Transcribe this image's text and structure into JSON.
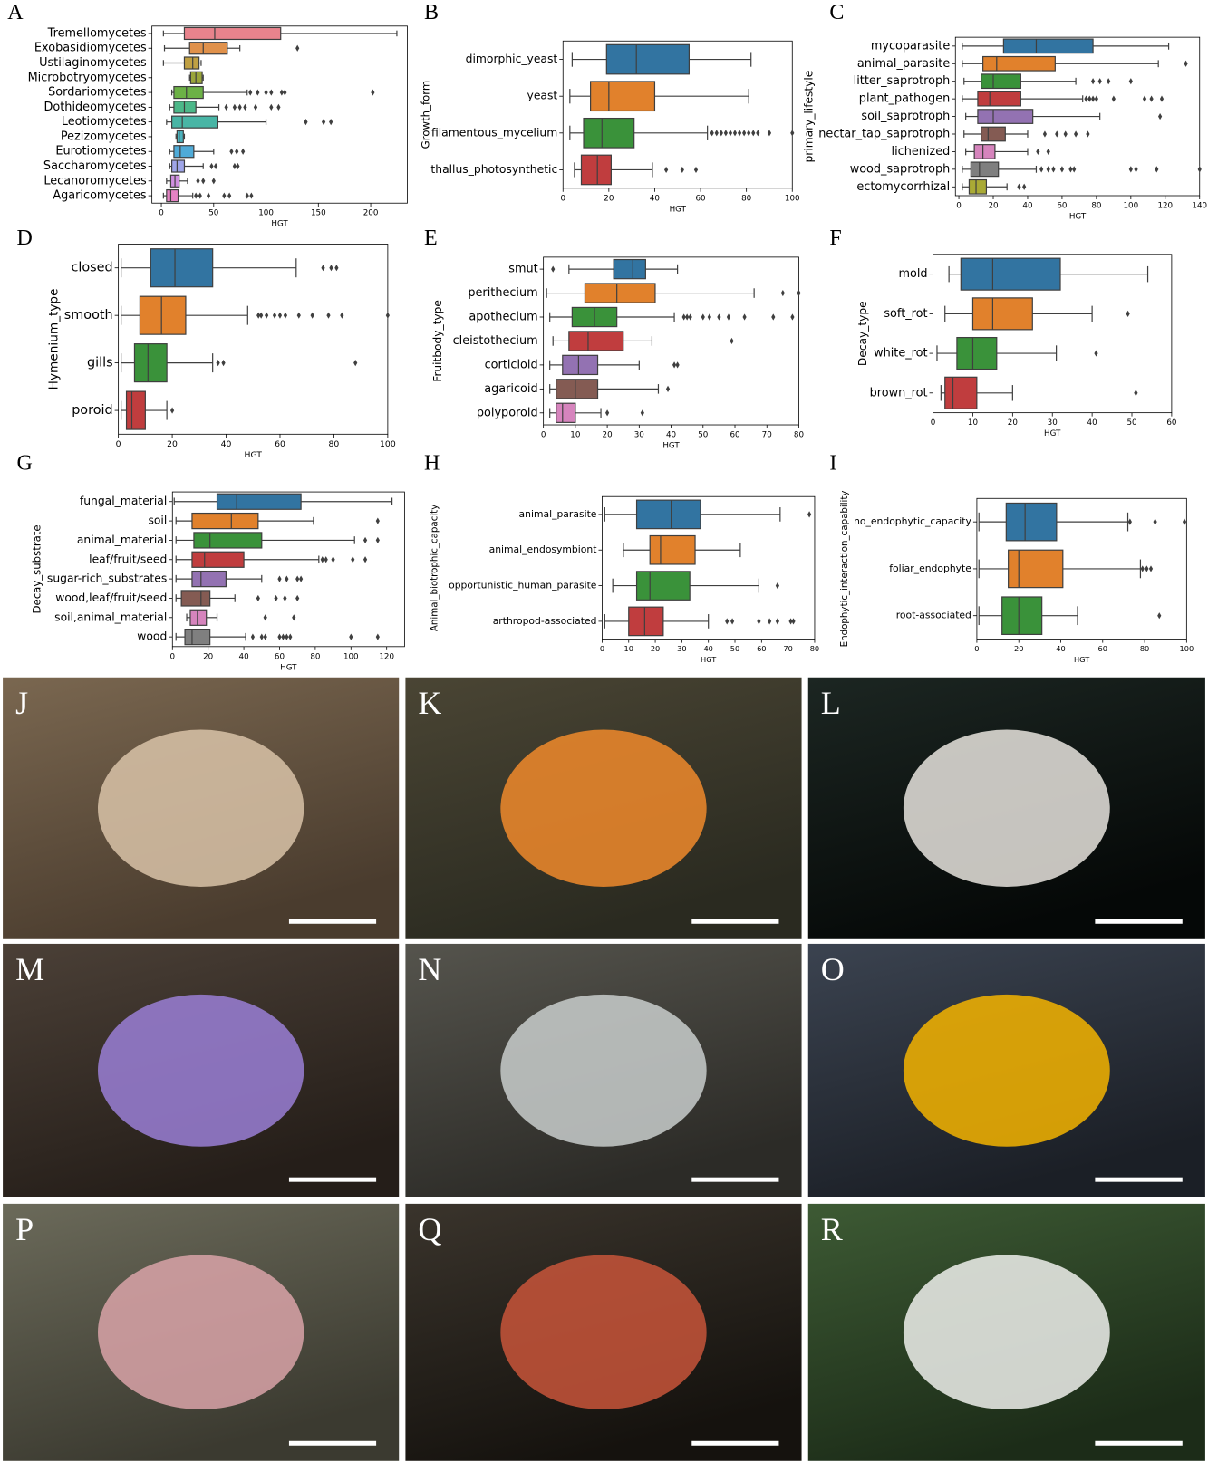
{
  "chart_data": [
    {
      "type": "box",
      "panel": "A",
      "xlabel": "HGT",
      "xlim": [
        -9,
        235
      ],
      "xticks": [
        0,
        50,
        100,
        150,
        200
      ],
      "categories": [
        "Tremellomycetes",
        "Exobasidiomycetes",
        "Ustilaginomycetes",
        "Microbotryomycetes",
        "Sordariomycetes",
        "Dothideomycetes",
        "Leotiomycetes",
        "Pezizomycetes",
        "Eurotiomycetes",
        "Saccharomycetes",
        "Lecanoromycetes",
        "Agaricomycetes"
      ],
      "colors": [
        "#e8838c",
        "#e0914b",
        "#c0a043",
        "#9aa53a",
        "#6cb146",
        "#4cb889",
        "#48b5a5",
        "#4ab2bd",
        "#4fabd8",
        "#9fa5e8",
        "#cf8fe0",
        "#e583c4"
      ],
      "boxes": [
        {
          "whislo": 2,
          "q1": 22,
          "med": 51,
          "q3": 114,
          "whishi": 225,
          "outliers": []
        },
        {
          "whislo": 3,
          "q1": 27,
          "med": 40,
          "q3": 63,
          "whishi": 75,
          "outliers": [
            130
          ]
        },
        {
          "whislo": 2,
          "q1": 22,
          "med": 30,
          "q3": 36,
          "whishi": 38,
          "outliers": []
        },
        {
          "whislo": 27,
          "q1": 28,
          "med": 33,
          "q3": 39,
          "whishi": 40,
          "outliers": []
        },
        {
          "whislo": 10,
          "q1": 12,
          "med": 24,
          "q3": 40,
          "whishi": 82,
          "outliers": [
            85,
            92,
            100,
            105,
            115,
            118,
            202
          ]
        },
        {
          "whislo": 8,
          "q1": 12,
          "med": 22,
          "q3": 33,
          "whishi": 55,
          "outliers": [
            62,
            70,
            75,
            80,
            90,
            105,
            112
          ]
        },
        {
          "whislo": 5,
          "q1": 10,
          "med": 20,
          "q3": 54,
          "whishi": 100,
          "outliers": [
            138,
            155,
            162
          ]
        },
        {
          "whislo": 14,
          "q1": 15,
          "med": 17,
          "q3": 21,
          "whishi": 22,
          "outliers": []
        },
        {
          "whislo": 8,
          "q1": 12,
          "med": 18,
          "q3": 31,
          "whishi": 50,
          "outliers": [
            67,
            72,
            78
          ]
        },
        {
          "whislo": 8,
          "q1": 10,
          "med": 15,
          "q3": 22,
          "whishi": 40,
          "outliers": [
            48,
            52,
            70,
            73
          ]
        },
        {
          "whislo": 5,
          "q1": 9,
          "med": 13,
          "q3": 17,
          "whishi": 25,
          "outliers": [
            35,
            40,
            50
          ]
        },
        {
          "whislo": 2,
          "q1": 5,
          "med": 9,
          "q3": 16,
          "whishi": 30,
          "outliers": [
            33,
            37,
            45,
            60,
            65,
            82,
            86
          ]
        }
      ]
    },
    {
      "type": "box",
      "panel": "B",
      "xlabel": "HGT",
      "ylabel": "Growth_form",
      "xlim": [
        0,
        100
      ],
      "xticks": [
        0,
        20,
        40,
        60,
        80,
        100
      ],
      "categories": [
        "dimorphic_yeast",
        "yeast",
        "filamentous_mycelium",
        "thallus_photosynthetic"
      ],
      "colors": [
        "#3274a1",
        "#e1812c",
        "#3a923a",
        "#c03d3e"
      ],
      "boxes": [
        {
          "whislo": 4,
          "q1": 19,
          "med": 32,
          "q3": 55,
          "whishi": 82,
          "outliers": []
        },
        {
          "whislo": 3,
          "q1": 12,
          "med": 20,
          "q3": 40,
          "whishi": 81,
          "outliers": []
        },
        {
          "whislo": 3,
          "q1": 9,
          "med": 17,
          "q3": 31,
          "whishi": 63,
          "outliers": [
            65,
            67,
            69,
            71,
            73,
            75,
            77,
            79,
            81,
            83,
            85,
            90,
            100
          ]
        },
        {
          "whislo": 5,
          "q1": 8,
          "med": 15,
          "q3": 21,
          "whishi": 39,
          "outliers": [
            45,
            52,
            58
          ]
        }
      ]
    },
    {
      "type": "box",
      "panel": "C",
      "xlabel": "HGT",
      "ylabel": "primary_lifestyle",
      "xlim": [
        -2,
        140
      ],
      "xticks": [
        0,
        20,
        40,
        60,
        80,
        100,
        120,
        140
      ],
      "categories": [
        "mycoparasite",
        "animal_parasite",
        "litter_saprotroph",
        "plant_pathogen",
        "soil_saprotroph",
        "nectar_tap_saprotroph",
        "lichenized",
        "wood_saprotroph",
        "ectomycorrhizal"
      ],
      "colors": [
        "#3274a1",
        "#e1812c",
        "#3a923a",
        "#c03d3e",
        "#9372b2",
        "#845b53",
        "#d684bd",
        "#7f7f7f",
        "#a9aa35"
      ],
      "boxes": [
        {
          "whislo": 2,
          "q1": 26,
          "med": 45,
          "q3": 78,
          "whishi": 122,
          "outliers": []
        },
        {
          "whislo": 2,
          "q1": 14,
          "med": 22,
          "q3": 56,
          "whishi": 116,
          "outliers": [
            132
          ]
        },
        {
          "whislo": 3,
          "q1": 13,
          "med": 20,
          "q3": 36,
          "whishi": 68,
          "outliers": [
            78,
            82,
            87,
            100
          ]
        },
        {
          "whislo": 2,
          "q1": 11,
          "med": 18,
          "q3": 36,
          "whishi": 72,
          "outliers": [
            74,
            76,
            78,
            80,
            90,
            108,
            112,
            118
          ]
        },
        {
          "whislo": 4,
          "q1": 11,
          "med": 20,
          "q3": 43,
          "whishi": 82,
          "outliers": [
            117
          ]
        },
        {
          "whislo": 3,
          "q1": 13,
          "med": 17,
          "q3": 27,
          "whishi": 40,
          "outliers": [
            50,
            57,
            62,
            68,
            75
          ]
        },
        {
          "whislo": 4,
          "q1": 9,
          "med": 14,
          "q3": 21,
          "whishi": 40,
          "outliers": [
            46,
            52
          ]
        },
        {
          "whislo": 2,
          "q1": 7,
          "med": 12,
          "q3": 23,
          "whishi": 45,
          "outliers": [
            48,
            52,
            55,
            60,
            65,
            67,
            100,
            103,
            115,
            140
          ]
        },
        {
          "whislo": 2,
          "q1": 6,
          "med": 10,
          "q3": 16,
          "whishi": 28,
          "outliers": [
            35,
            38
          ]
        }
      ]
    },
    {
      "type": "box",
      "panel": "D",
      "xlabel": "HGT",
      "ylabel": "Hymenium_type",
      "xlim": [
        0,
        100
      ],
      "xticks": [
        0,
        20,
        40,
        60,
        80,
        100
      ],
      "categories": [
        "closed",
        "smooth",
        "gills",
        "poroid"
      ],
      "colors": [
        "#3274a1",
        "#e1812c",
        "#3a923a",
        "#c03d3e"
      ],
      "boxes": [
        {
          "whislo": 1,
          "q1": 12,
          "med": 21,
          "q3": 35,
          "whishi": 66,
          "outliers": [
            76,
            79,
            81
          ]
        },
        {
          "whislo": 1,
          "q1": 8,
          "med": 16,
          "q3": 25,
          "whishi": 48,
          "outliers": [
            52,
            53,
            55,
            58,
            60,
            62,
            67,
            72,
            78,
            83,
            100
          ]
        },
        {
          "whislo": 1,
          "q1": 6,
          "med": 11,
          "q3": 18,
          "whishi": 35,
          "outliers": [
            37,
            39,
            88
          ]
        },
        {
          "whislo": 1,
          "q1": 3,
          "med": 5,
          "q3": 10,
          "whishi": 18,
          "outliers": [
            20
          ]
        }
      ]
    },
    {
      "type": "box",
      "panel": "E",
      "xlabel": "HGT",
      "ylabel": "Fruitbody_type",
      "xlim": [
        0,
        80
      ],
      "xticks": [
        0,
        10,
        20,
        30,
        40,
        50,
        60,
        70,
        80
      ],
      "categories": [
        "smut",
        "perithecium",
        "apothecium",
        "cleistothecium",
        "corticioid",
        "agaricoid",
        "polyporoid"
      ],
      "colors": [
        "#3274a1",
        "#e1812c",
        "#3a923a",
        "#c03d3e",
        "#9372b2",
        "#845b53",
        "#d684bd"
      ],
      "boxes": [
        {
          "whislo": 8,
          "q1": 22,
          "med": 28,
          "q3": 32,
          "whishi": 42,
          "outliers": [
            3
          ]
        },
        {
          "whislo": 1,
          "q1": 13,
          "med": 23,
          "q3": 35,
          "whishi": 66,
          "outliers": [
            75,
            80
          ]
        },
        {
          "whislo": 2,
          "q1": 9,
          "med": 16,
          "q3": 23,
          "whishi": 41,
          "outliers": [
            44,
            45,
            46,
            50,
            52,
            55,
            58,
            63,
            72,
            78
          ]
        },
        {
          "whislo": 3,
          "q1": 8,
          "med": 14,
          "q3": 25,
          "whishi": 34,
          "outliers": [
            59
          ]
        },
        {
          "whislo": 2,
          "q1": 6,
          "med": 11,
          "q3": 17,
          "whishi": 30,
          "outliers": [
            41,
            42
          ]
        },
        {
          "whislo": 2,
          "q1": 4,
          "med": 10,
          "q3": 17,
          "whishi": 36,
          "outliers": [
            39
          ]
        },
        {
          "whislo": 2,
          "q1": 4,
          "med": 6,
          "q3": 10,
          "whishi": 18,
          "outliers": [
            20,
            31
          ]
        }
      ]
    },
    {
      "type": "box",
      "panel": "F",
      "xlabel": "HGT",
      "ylabel": "Decay_type",
      "xlim": [
        0,
        60
      ],
      "xticks": [
        0,
        10,
        20,
        30,
        40,
        50,
        60
      ],
      "categories": [
        "mold",
        "soft_rot",
        "white_rot",
        "brown_rot"
      ],
      "colors": [
        "#3274a1",
        "#e1812c",
        "#3a923a",
        "#c03d3e"
      ],
      "boxes": [
        {
          "whislo": 4,
          "q1": 7,
          "med": 15,
          "q3": 32,
          "whishi": 54,
          "outliers": []
        },
        {
          "whislo": 3,
          "q1": 10,
          "med": 15,
          "q3": 25,
          "whishi": 40,
          "outliers": [
            49
          ]
        },
        {
          "whislo": 1,
          "q1": 6,
          "med": 10,
          "q3": 16,
          "whishi": 31,
          "outliers": [
            41
          ]
        },
        {
          "whislo": 2,
          "q1": 3,
          "med": 5,
          "q3": 11,
          "whishi": 20,
          "outliers": [
            51
          ]
        }
      ]
    },
    {
      "type": "box",
      "panel": "G",
      "xlabel": "HGT",
      "ylabel": "Decay_substrate",
      "xlim": [
        0,
        130
      ],
      "xticks": [
        0,
        20,
        40,
        60,
        80,
        100,
        120
      ],
      "categories": [
        "fungal_material",
        "soil",
        "animal_material",
        "leaf/fruit/seed",
        "sugar-rich_substrates",
        "wood,leaf/fruit/seed",
        "soil,animal_material",
        "wood"
      ],
      "colors": [
        "#3274a1",
        "#e1812c",
        "#3a923a",
        "#c03d3e",
        "#9372b2",
        "#845b53",
        "#d684bd",
        "#7f7f7f"
      ],
      "boxes": [
        {
          "whislo": 1,
          "q1": 25,
          "med": 36,
          "q3": 72,
          "whishi": 123,
          "outliers": []
        },
        {
          "whislo": 2,
          "q1": 11,
          "med": 33,
          "q3": 48,
          "whishi": 79,
          "outliers": [
            115
          ]
        },
        {
          "whislo": 2,
          "q1": 12,
          "med": 21,
          "q3": 50,
          "whishi": 102,
          "outliers": [
            108,
            115
          ]
        },
        {
          "whislo": 2,
          "q1": 11,
          "med": 18,
          "q3": 40,
          "whishi": 82,
          "outliers": [
            84,
            86,
            90,
            101,
            108
          ]
        },
        {
          "whislo": 2,
          "q1": 11,
          "med": 16,
          "q3": 30,
          "whishi": 50,
          "outliers": [
            60,
            64,
            70,
            72
          ]
        },
        {
          "whislo": 2,
          "q1": 5,
          "med": 16,
          "q3": 21,
          "whishi": 35,
          "outliers": [
            48,
            58,
            63,
            70
          ]
        },
        {
          "whislo": 8,
          "q1": 10,
          "med": 14,
          "q3": 19,
          "whishi": 25,
          "outliers": [
            52,
            68
          ]
        },
        {
          "whislo": 2,
          "q1": 7,
          "med": 11,
          "q3": 21,
          "whishi": 41,
          "outliers": [
            45,
            50,
            52,
            60,
            62,
            64,
            66,
            100,
            115
          ]
        }
      ]
    },
    {
      "type": "box",
      "panel": "H",
      "xlabel": "HGT",
      "ylabel": "Animal_biotrophic_capacity",
      "xlim": [
        0,
        80
      ],
      "xticks": [
        0,
        10,
        20,
        30,
        40,
        50,
        60,
        70,
        80
      ],
      "categories": [
        "animal_parasite",
        "animal_endosymbiont",
        "opportunistic_human_parasite",
        "arthropod-associated"
      ],
      "colors": [
        "#3274a1",
        "#e1812c",
        "#3a923a",
        "#c03d3e"
      ],
      "boxes": [
        {
          "whislo": 1,
          "q1": 13,
          "med": 26,
          "q3": 37,
          "whishi": 67,
          "outliers": [
            78
          ]
        },
        {
          "whislo": 8,
          "q1": 18,
          "med": 22,
          "q3": 35,
          "whishi": 52,
          "outliers": []
        },
        {
          "whislo": 4,
          "q1": 13,
          "med": 18,
          "q3": 33,
          "whishi": 59,
          "outliers": [
            66
          ]
        },
        {
          "whislo": 1,
          "q1": 10,
          "med": 16,
          "q3": 23,
          "whishi": 40,
          "outliers": [
            47,
            49,
            59,
            63,
            66,
            71,
            72
          ]
        }
      ]
    },
    {
      "type": "box",
      "panel": "I",
      "xlabel": "HGT",
      "ylabel": "Endophytic_interaction_capability",
      "xlim": [
        0,
        100
      ],
      "xticks": [
        0,
        20,
        40,
        60,
        80,
        100
      ],
      "categories": [
        "no_endophytic_capacity",
        "foliar_endophyte",
        "root-associated"
      ],
      "colors": [
        "#3274a1",
        "#e1812c",
        "#3a923a"
      ],
      "boxes": [
        {
          "whislo": 1,
          "q1": 14,
          "med": 23,
          "q3": 38,
          "whishi": 72,
          "outliers": [
            73,
            85,
            99
          ]
        },
        {
          "whislo": 1,
          "q1": 15,
          "med": 20,
          "q3": 41,
          "whishi": 78,
          "outliers": [
            79,
            81,
            83
          ]
        },
        {
          "whislo": 1,
          "q1": 12,
          "med": 20,
          "q3": 31,
          "whishi": 48,
          "outliers": [
            87
          ]
        }
      ]
    }
  ],
  "photo_panels": [
    "J",
    "K",
    "L",
    "M",
    "N",
    "O",
    "P",
    "Q",
    "R"
  ]
}
